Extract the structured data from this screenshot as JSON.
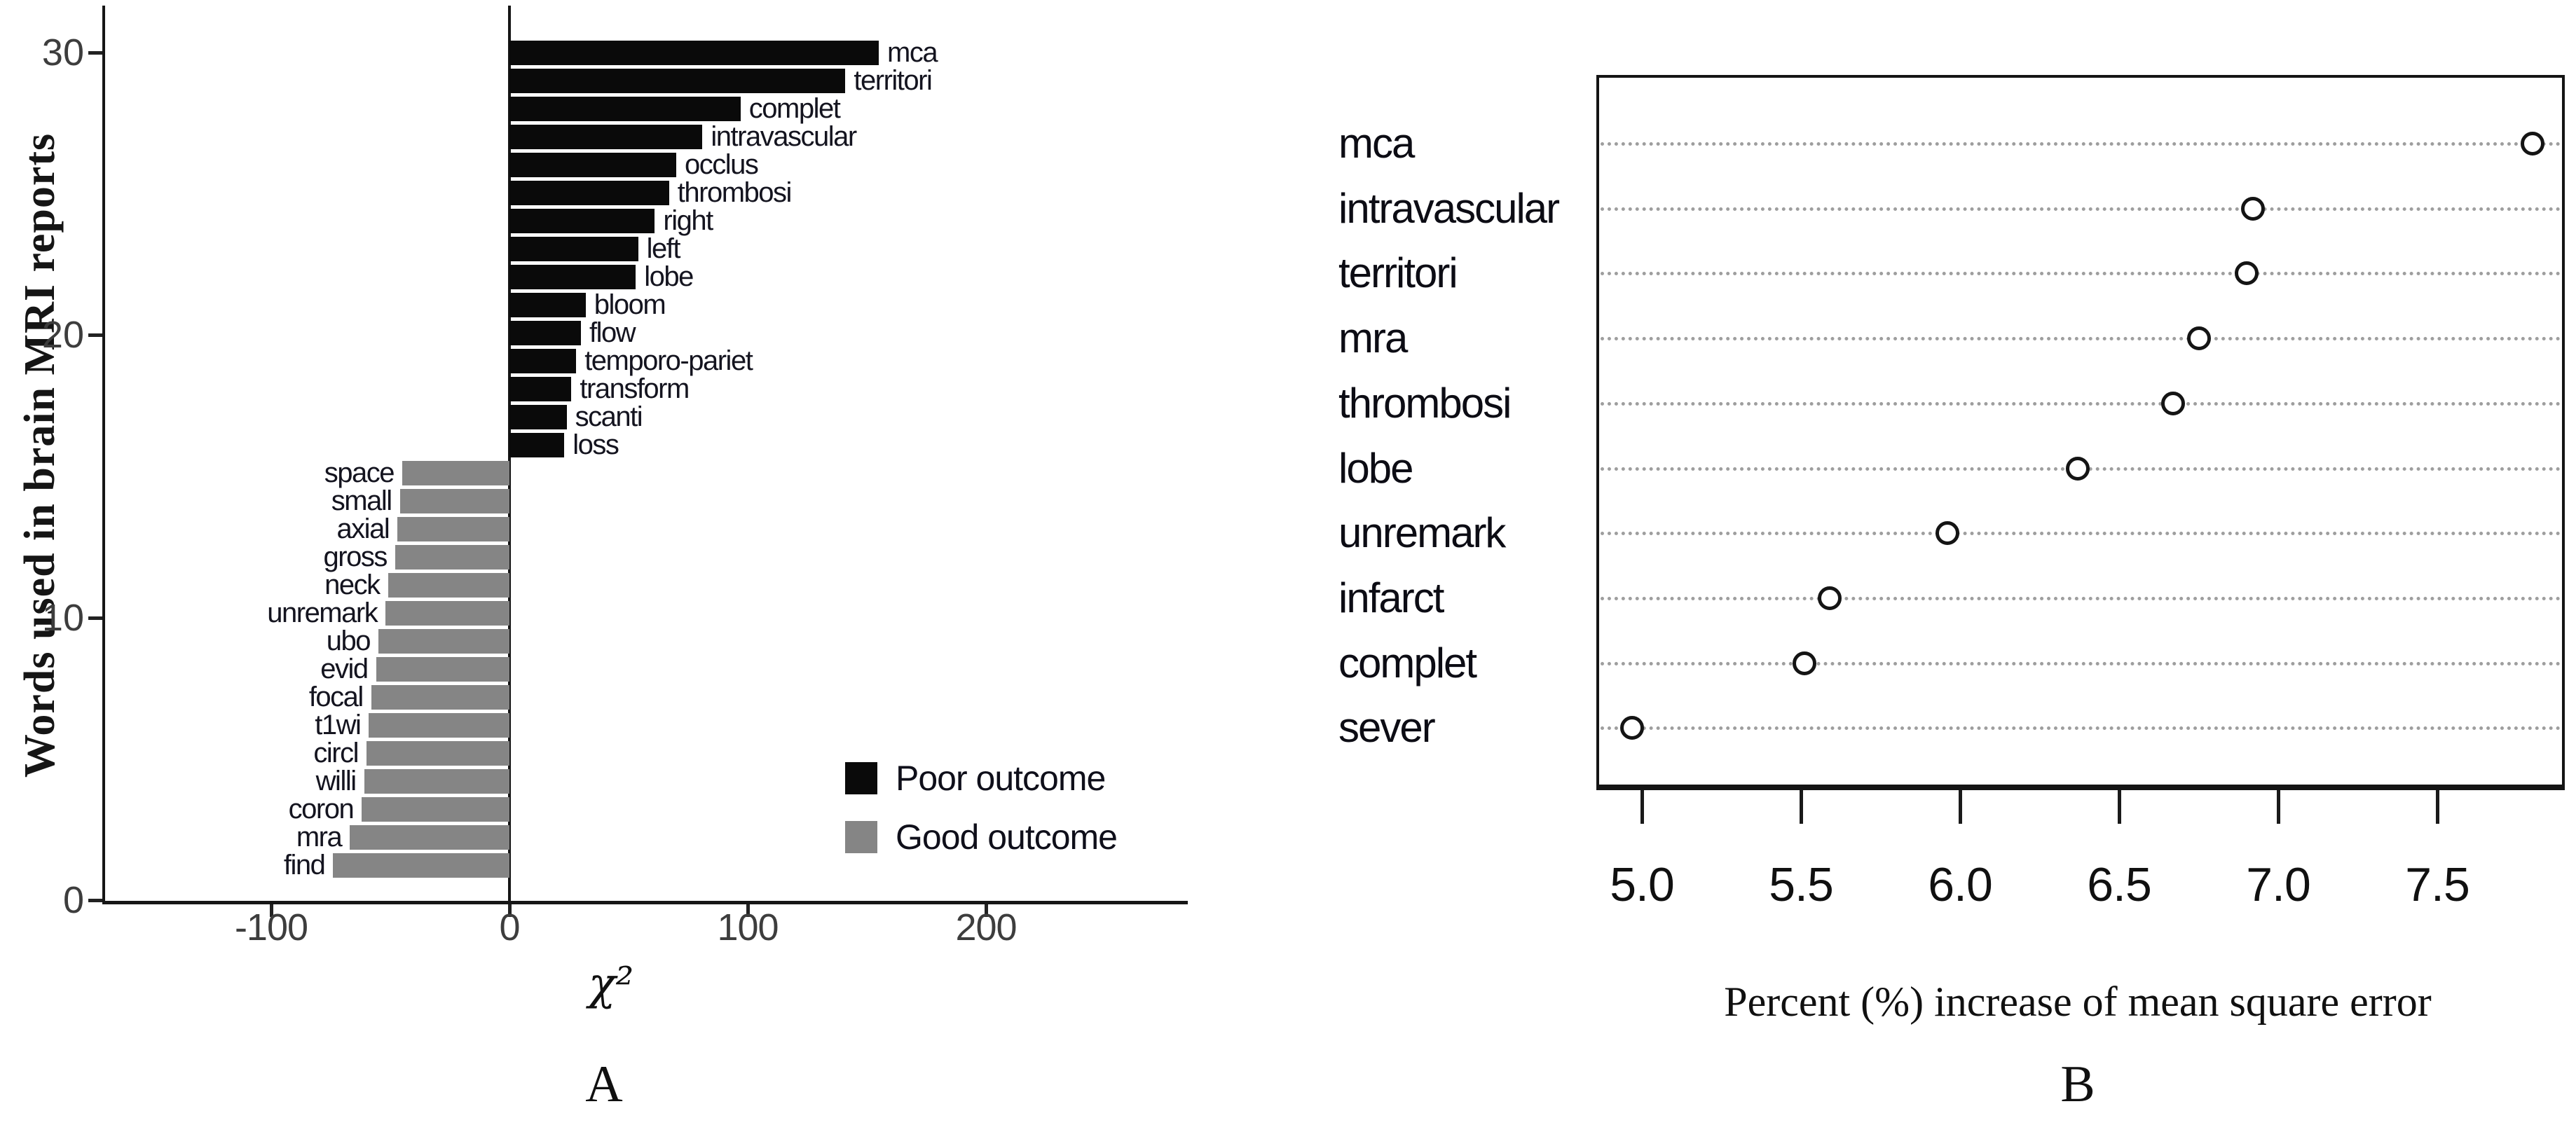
{
  "panel_a": {
    "label": "A",
    "y_axis_title": "Words used in brain MRI reports",
    "x_axis_title": "χ²",
    "legend": [
      {
        "label": "Poor outcome",
        "color": "#0a0a0a"
      },
      {
        "label": "Good outcome",
        "color": "#858585"
      }
    ]
  },
  "panel_b": {
    "label": "B",
    "x_axis_title": "Percent (%) increase of mean square error"
  },
  "chart_data": [
    {
      "type": "bar",
      "orientation": "horizontal",
      "title": "",
      "xlabel": "χ²",
      "ylabel": "Words used in brain MRI reports",
      "xlim": [
        -170,
        290
      ],
      "ylim": [
        0,
        31
      ],
      "grid": "off",
      "legend_position": "right-middle",
      "series_colors": {
        "Poor outcome": "#0a0a0a",
        "Good outcome": "#858585"
      },
      "x_ticks": [
        {
          "value": -100,
          "label": "-100"
        },
        {
          "value": 0,
          "label": "0"
        },
        {
          "value": 100,
          "label": "100"
        },
        {
          "value": 200,
          "label": "200"
        }
      ],
      "y_ticks": [
        {
          "value": 30,
          "label": "30"
        },
        {
          "value": 20,
          "label": "20"
        },
        {
          "value": 10,
          "label": "10"
        },
        {
          "value": 0,
          "label": "0"
        }
      ],
      "bars": [
        {
          "label": "mca",
          "value": 155,
          "group": "Poor outcome"
        },
        {
          "label": "territori",
          "value": 141,
          "group": "Poor outcome"
        },
        {
          "label": "complet",
          "value": 97,
          "group": "Poor outcome"
        },
        {
          "label": "intravascular",
          "value": 81,
          "group": "Poor outcome"
        },
        {
          "label": "occlus",
          "value": 70,
          "group": "Poor outcome"
        },
        {
          "label": "thrombosi",
          "value": 67,
          "group": "Poor outcome"
        },
        {
          "label": "right",
          "value": 61,
          "group": "Poor outcome"
        },
        {
          "label": "left",
          "value": 54,
          "group": "Poor outcome"
        },
        {
          "label": "lobe",
          "value": 53,
          "group": "Poor outcome"
        },
        {
          "label": "bloom",
          "value": 32,
          "group": "Poor outcome"
        },
        {
          "label": "flow",
          "value": 30,
          "group": "Poor outcome"
        },
        {
          "label": "temporo-pariet",
          "value": 28,
          "group": "Poor outcome"
        },
        {
          "label": "transform",
          "value": 26,
          "group": "Poor outcome"
        },
        {
          "label": "scanti",
          "value": 24,
          "group": "Poor outcome"
        },
        {
          "label": "loss",
          "value": 23,
          "group": "Poor outcome"
        },
        {
          "label": "space",
          "value": -45,
          "group": "Good outcome"
        },
        {
          "label": "small",
          "value": -46,
          "group": "Good outcome"
        },
        {
          "label": "axial",
          "value": -47,
          "group": "Good outcome"
        },
        {
          "label": "gross",
          "value": -48,
          "group": "Good outcome"
        },
        {
          "label": "neck",
          "value": -51,
          "group": "Good outcome"
        },
        {
          "label": "unremark",
          "value": -52,
          "group": "Good outcome"
        },
        {
          "label": "ubo",
          "value": -55,
          "group": "Good outcome"
        },
        {
          "label": "evid",
          "value": -56,
          "group": "Good outcome"
        },
        {
          "label": "focal",
          "value": -58,
          "group": "Good outcome"
        },
        {
          "label": "t1wi",
          "value": -59,
          "group": "Good outcome"
        },
        {
          "label": "circl",
          "value": -60,
          "group": "Good outcome"
        },
        {
          "label": "willi",
          "value": -61,
          "group": "Good outcome"
        },
        {
          "label": "coron",
          "value": -62,
          "group": "Good outcome"
        },
        {
          "label": "mra",
          "value": -67,
          "group": "Good outcome"
        },
        {
          "label": "find",
          "value": -74,
          "group": "Good outcome"
        }
      ]
    },
    {
      "type": "scatter",
      "title": "",
      "xlabel": "Percent (%) increase of mean square error",
      "xlim": [
        4.85,
        7.9
      ],
      "grid": "dotted-horizontal",
      "x_ticks": [
        {
          "value": 5.0,
          "label": "5.0"
        },
        {
          "value": 5.5,
          "label": "5.5"
        },
        {
          "value": 6.0,
          "label": "6.0"
        },
        {
          "value": 6.5,
          "label": "6.5"
        },
        {
          "value": 7.0,
          "label": "7.0"
        },
        {
          "value": 7.5,
          "label": "7.5"
        }
      ],
      "points": [
        {
          "label": "mca",
          "value": 7.8
        },
        {
          "label": "intravascular",
          "value": 6.92
        },
        {
          "label": "territori",
          "value": 6.9
        },
        {
          "label": "mra",
          "value": 6.75
        },
        {
          "label": "thrombosi",
          "value": 6.67
        },
        {
          "label": "lobe",
          "value": 6.37
        },
        {
          "label": "unremark",
          "value": 5.96
        },
        {
          "label": "infarct",
          "value": 5.59
        },
        {
          "label": "complet",
          "value": 5.51
        },
        {
          "label": "sever",
          "value": 4.97
        }
      ]
    }
  ]
}
